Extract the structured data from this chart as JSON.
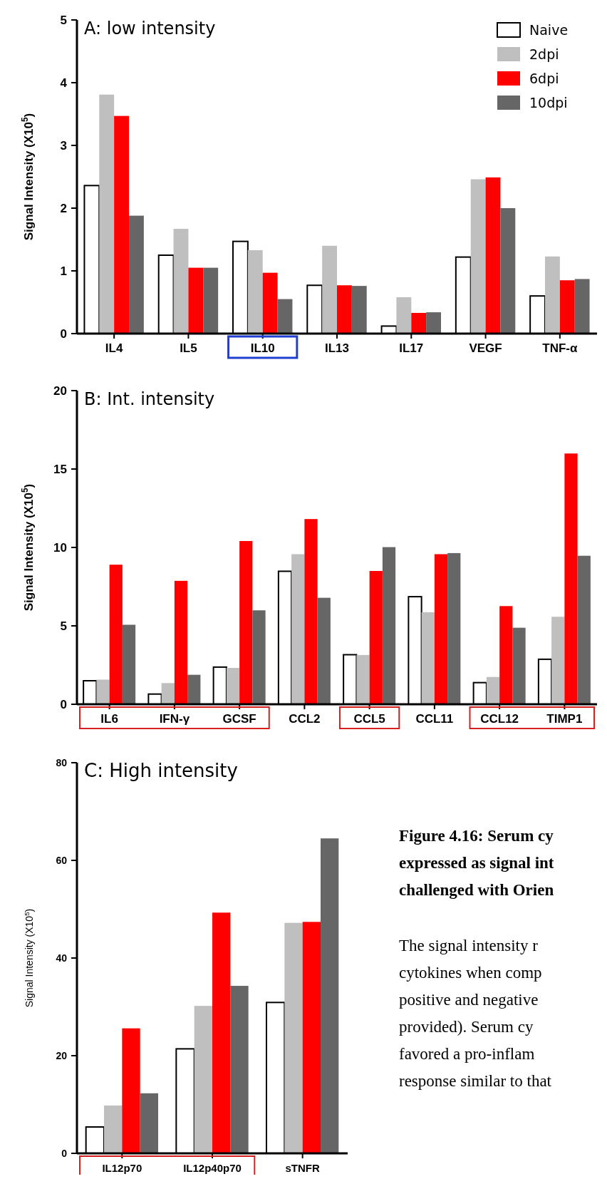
{
  "chart_data": [
    {
      "type": "bar",
      "title": "A: low intensity",
      "ylabel": "Signal Intensity (X10$^{5}$)",
      "categories": [
        "IL4",
        "IL5",
        "IL10",
        "IL13",
        "IL17",
        "VEGF",
        "TNF-α"
      ],
      "series": [
        {
          "name": "Naive",
          "color": "#ffffff",
          "values": [
            2.36,
            1.25,
            1.47,
            0.77,
            0.12,
            1.22,
            0.6
          ]
        },
        {
          "name": "2dpi",
          "color": "#bfbfbf",
          "values": [
            3.81,
            1.67,
            1.33,
            1.4,
            0.58,
            2.46,
            1.23
          ]
        },
        {
          "name": "6dpi",
          "color": "#ff0000",
          "values": [
            3.47,
            1.05,
            0.97,
            0.77,
            0.33,
            2.49,
            0.85
          ]
        },
        {
          "name": "10dpi",
          "color": "#666666",
          "values": [
            1.88,
            1.05,
            0.55,
            0.76,
            0.34,
            2.0,
            0.87
          ]
        }
      ],
      "ylim": [
        0,
        5
      ],
      "yticks": [
        0,
        1,
        2,
        3,
        4,
        5
      ],
      "legend": "top right"
    },
    {
      "type": "bar",
      "title": "B: Int. intensity",
      "ylabel": "Signal Intensity (X10$^{5}$)",
      "categories": [
        "IL6",
        "IFN-γ",
        "GCSF",
        "CCL2",
        "CCL5",
        "CCL11",
        "CCL12",
        "TIMP1"
      ],
      "series": [
        {
          "color": "#ffffff",
          "values": [
            1.5,
            0.65,
            2.37,
            8.48,
            3.16,
            6.86,
            1.38,
            2.87
          ]
        },
        {
          "color": "#bfbfbf",
          "values": [
            1.57,
            1.35,
            2.32,
            9.57,
            3.14,
            5.87,
            1.74,
            5.58
          ]
        },
        {
          "color": "#ff0000",
          "values": [
            8.9,
            7.87,
            10.41,
            11.81,
            8.5,
            9.57,
            6.26,
            15.99
          ]
        },
        {
          "color": "#666666",
          "values": [
            5.07,
            1.88,
            5.99,
            6.79,
            10.02,
            9.64,
            4.88,
            9.47
          ]
        }
      ],
      "ylim": [
        0,
        20
      ],
      "yticks": [
        0,
        5,
        10,
        15,
        20
      ]
    },
    {
      "type": "bar",
      "title": "C: High intensity",
      "ylabel": "Signal Intensity (X10$^{5}$)",
      "categories": [
        "IL12p70",
        "IL12p40p70",
        "sTNFR"
      ],
      "series": [
        {
          "color": "#ffffff",
          "values": [
            5.4,
            21.4,
            30.9
          ]
        },
        {
          "color": "#bfbfbf",
          "values": [
            9.8,
            30.2,
            47.2
          ]
        },
        {
          "color": "#ff0000",
          "values": [
            25.6,
            49.3,
            47.4
          ]
        },
        {
          "color": "#666666",
          "values": [
            12.3,
            34.3,
            64.5
          ]
        }
      ],
      "ylim": [
        0,
        80
      ],
      "yticks": [
        0,
        20,
        40,
        60,
        80
      ],
      "annotations": [
        "Figure 4.16:  Serum cy",
        "expressed as signal int",
        "challenged with Orien",
        "The signal intensity r",
        "cytokines when comp",
        "positive and negative",
        "provided).  Serum cy",
        "favored a pro-inflam",
        "response similar to that"
      ]
    }
  ]
}
